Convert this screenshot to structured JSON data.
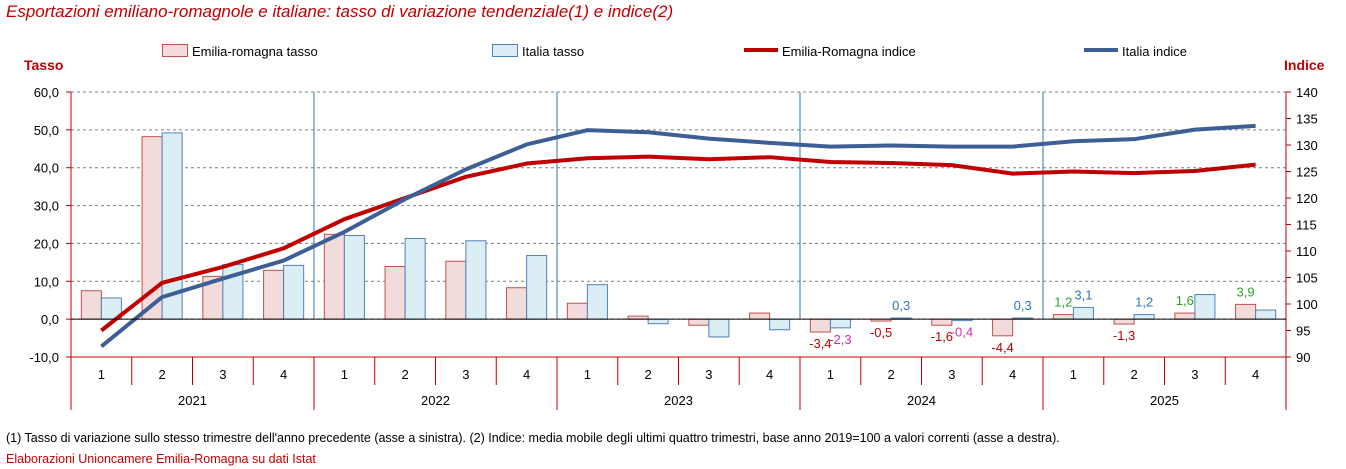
{
  "title": "Esportazioni emiliano-romagnole e italiane: tasso di variazione tendenziale(1) e indice(2)",
  "left_axis_title": "Tasso",
  "right_axis_title": "Indice",
  "footnote": "(1) Tasso di variazione sullo stesso trimestre dell'anno precedente (asse a sinistra). (2) Indice: media mobile degli ultimi quattro trimestri, base anno 2019=100 a valori correnti (asse a destra).",
  "source": "Elaborazioni Unioncamere Emilia-Romagna su dati Istat",
  "legend": [
    {
      "label": "Emilia-romagna tasso",
      "kind": "box",
      "fill": "#f2dcdb",
      "stroke": "#c0504d"
    },
    {
      "label": "Italia tasso",
      "kind": "box",
      "fill": "#dbeef4",
      "stroke": "#4f81bd"
    },
    {
      "label": "Emilia-Romagna indice",
      "kind": "line",
      "color": "#c00000"
    },
    {
      "label": "Italia indice",
      "kind": "line",
      "color": "#3d5f95"
    }
  ],
  "colors": {
    "er_bar_fill": "#f2dcdb",
    "er_bar_stroke": "#c0504d",
    "it_bar_fill": "#dbeef4",
    "it_bar_stroke": "#4f81bd",
    "er_line": "#c00000",
    "it_line": "#3d5f95",
    "axis_red": "#c00000",
    "year_separator": "#2e75b6"
  },
  "chart_data": {
    "type": "bar",
    "combo": "bar-line dual axis",
    "years": [
      "2021",
      "2022",
      "2023",
      "2024",
      "2025"
    ],
    "quarters": [
      "1",
      "2",
      "3",
      "4"
    ],
    "categories": [
      "1",
      "2",
      "3",
      "4",
      "1",
      "2",
      "3",
      "4",
      "1",
      "2",
      "3",
      "4",
      "1",
      "2",
      "3",
      "4",
      "1",
      "2",
      "3",
      "4"
    ],
    "y_left": {
      "ylim": [
        -10,
        60
      ],
      "ticks": [
        "-10,0",
        "0,0",
        "10,0",
        "20,0",
        "30,0",
        "40,0",
        "50,0",
        "60,0"
      ],
      "tick_values": [
        -10,
        0,
        10,
        20,
        30,
        40,
        50,
        60
      ]
    },
    "y_right": {
      "ylim": [
        90,
        140
      ],
      "ticks": [
        "90",
        "95",
        "100",
        "105",
        "110",
        "115",
        "120",
        "125",
        "130",
        "135",
        "140"
      ],
      "tick_values": [
        90,
        95,
        100,
        105,
        110,
        115,
        120,
        125,
        130,
        135,
        140
      ]
    },
    "grid": true,
    "legend_position": "top",
    "series": [
      {
        "name": "Emilia-romagna tasso",
        "type": "bar",
        "axis": "left",
        "values": [
          7.5,
          48.2,
          11.3,
          12.9,
          22.4,
          13.9,
          15.3,
          8.3,
          4.2,
          0.8,
          -1.6,
          1.6,
          -3.4,
          -0.5,
          -1.6,
          -4.4,
          1.2,
          -1.3,
          1.6,
          3.9
        ]
      },
      {
        "name": "Italia tasso",
        "type": "bar",
        "axis": "left",
        "values": [
          5.6,
          49.2,
          14.4,
          14.2,
          22.1,
          21.3,
          20.7,
          16.8,
          9.1,
          -1.2,
          -4.7,
          -2.8,
          -2.3,
          0.3,
          -0.4,
          0.3,
          3.1,
          1.2,
          6.5,
          2.4
        ]
      },
      {
        "name": "Emilia-Romagna indice",
        "type": "line",
        "axis": "right",
        "values": [
          95.0,
          104.0,
          107.0,
          110.5,
          116.0,
          120.0,
          124.0,
          126.5,
          127.5,
          127.8,
          127.3,
          127.7,
          126.8,
          126.6,
          126.2,
          124.6,
          125.0,
          124.7,
          125.1,
          126.3
        ]
      },
      {
        "name": "Italia indice",
        "type": "line",
        "axis": "right",
        "values": [
          92.0,
          101.3,
          104.8,
          108.2,
          113.6,
          119.8,
          125.4,
          130.1,
          132.8,
          132.4,
          131.2,
          130.4,
          129.7,
          129.9,
          129.7,
          129.7,
          130.7,
          131.1,
          132.9,
          133.6
        ]
      }
    ],
    "data_labels": [
      {
        "text": "-3,4",
        "index": 12,
        "series": "Emilia-romagna tasso",
        "color": "#c00000"
      },
      {
        "text": "-2,3",
        "index": 12,
        "series": "Italia tasso",
        "color": "#d42ab4"
      },
      {
        "text": "0,3",
        "index": 13,
        "series": "Italia tasso",
        "color": "#2e75b6"
      },
      {
        "text": "-0,5",
        "index": 13,
        "series": "Emilia-romagna tasso",
        "color": "#c00000"
      },
      {
        "text": "-1,6",
        "index": 14,
        "series": "Emilia-romagna tasso",
        "color": "#c00000"
      },
      {
        "text": "-0,4",
        "index": 14,
        "series": "Italia tasso",
        "color": "#d42ab4"
      },
      {
        "text": "-4,4",
        "index": 15,
        "series": "Emilia-romagna tasso",
        "color": "#c00000"
      },
      {
        "text": "0,3",
        "index": 15,
        "series": "Italia tasso",
        "color": "#2e75b6"
      },
      {
        "text": "1,2",
        "index": 16,
        "series": "Emilia-romagna tasso",
        "color": "#2e9e2e"
      },
      {
        "text": "3,1",
        "index": 16,
        "series": "Italia tasso",
        "color": "#2e75b6"
      },
      {
        "text": "-1,3",
        "index": 17,
        "series": "Emilia-romagna tasso",
        "color": "#c00000"
      },
      {
        "text": "1,2",
        "index": 17,
        "series": "Italia tasso",
        "color": "#2e75b6"
      },
      {
        "text": "1,6",
        "index": 18,
        "series": "Emilia-romagna tasso",
        "color": "#2e9e2e"
      },
      {
        "text": "3,9",
        "index": 19,
        "series": "Emilia-romagna tasso",
        "color": "#2e9e2e"
      }
    ]
  }
}
